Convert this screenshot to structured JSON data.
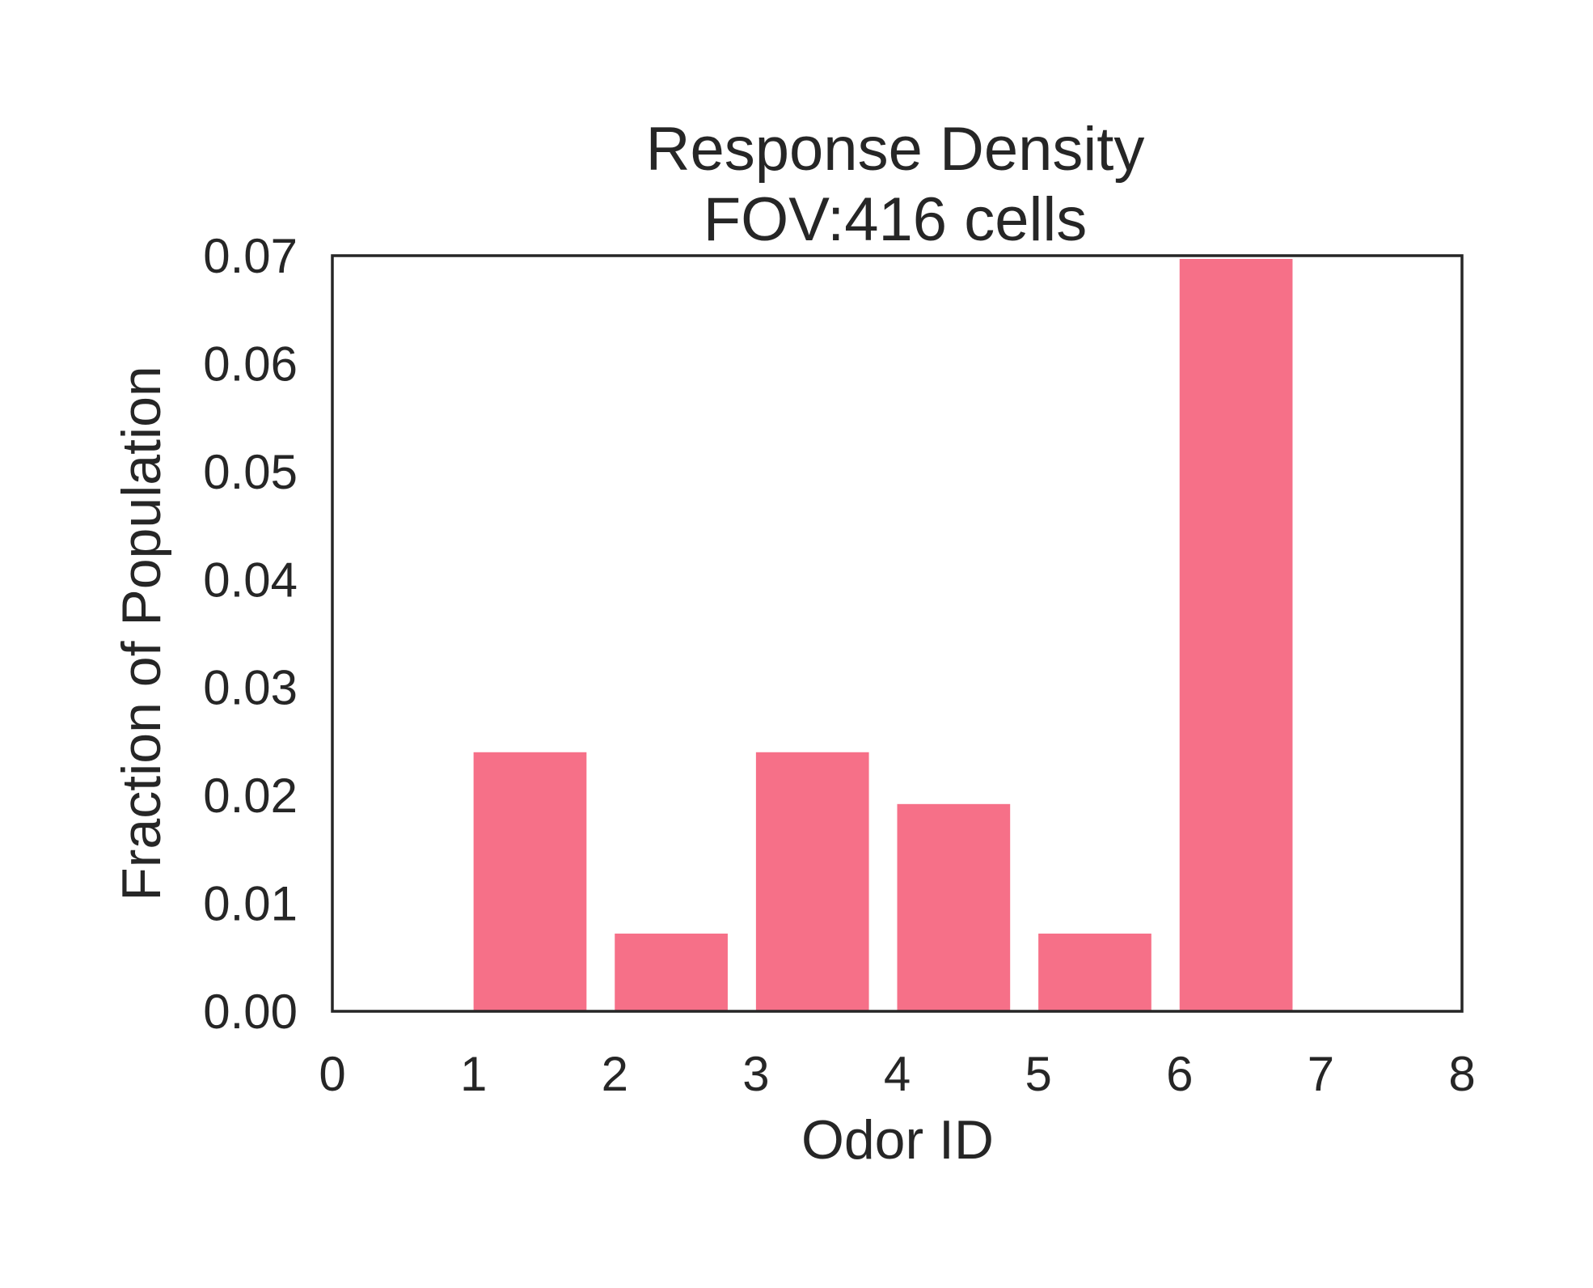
{
  "chart_data": {
    "type": "bar",
    "title": [
      "Response Density",
      "FOV:416 cells"
    ],
    "xlabel": "Odor ID",
    "ylabel": "Fraction of Population",
    "xlim": [
      0,
      8
    ],
    "ylim": [
      0,
      0.07
    ],
    "x_ticks": [
      "0",
      "1",
      "2",
      "3",
      "4",
      "5",
      "6",
      "7",
      "8"
    ],
    "y_ticks": [
      "0.00",
      "0.01",
      "0.02",
      "0.03",
      "0.04",
      "0.05",
      "0.06",
      "0.07"
    ],
    "bar_width": 0.8,
    "bar_color": "#f67088",
    "bars": [
      {
        "x": 1,
        "value": 0.024
      },
      {
        "x": 2,
        "value": 0.0072
      },
      {
        "x": 3,
        "value": 0.024
      },
      {
        "x": 4,
        "value": 0.0192
      },
      {
        "x": 5,
        "value": 0.0072
      },
      {
        "x": 6,
        "value": 0.0697
      }
    ],
    "grid": false,
    "legend": "none"
  }
}
